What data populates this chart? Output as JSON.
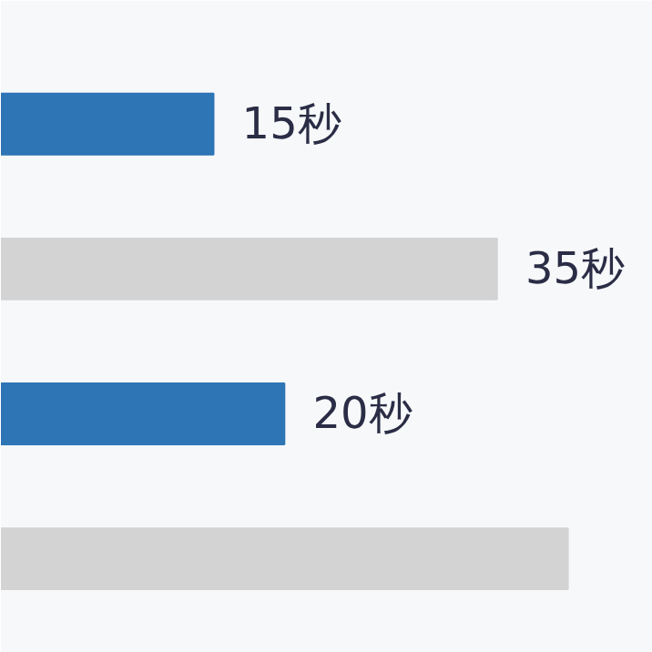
{
  "chart_data": {
    "type": "bar",
    "orientation": "horizontal",
    "categories": [
      null,
      null,
      null,
      null
    ],
    "values": [
      15,
      35,
      20,
      40
    ],
    "colors": [
      "#2e75b6",
      "#d3d3d3",
      "#2e75b6",
      "#d3d3d3"
    ],
    "value_labels": [
      "15秒",
      "35秒",
      "20秒",
      null
    ],
    "grid": false,
    "tick_labels": false
  }
}
